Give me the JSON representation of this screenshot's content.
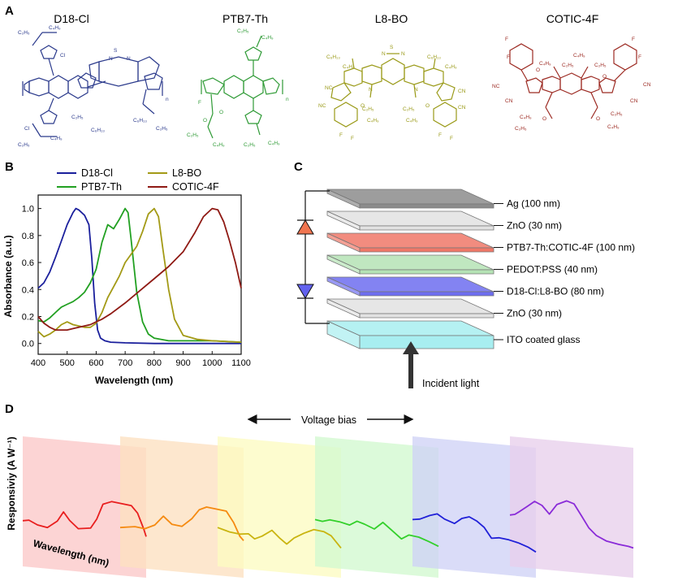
{
  "panel_labels": {
    "a": "A",
    "b": "B",
    "c": "C",
    "d": "D"
  },
  "panel_a": {
    "molecules": [
      {
        "name": "D18-Cl",
        "color": "#2b3a8c"
      },
      {
        "name": "PTB7-Th",
        "color": "#2e9a35"
      },
      {
        "name": "L8-BO",
        "color": "#9a9a18"
      },
      {
        "name": "COTIC-4F",
        "color": "#9c2a22"
      }
    ],
    "atom_labels": {
      "s": "S",
      "n": "N",
      "o": "O",
      "f": "F",
      "cl": "Cl",
      "cn": "CN",
      "nc": "NC",
      "sub_n": "n",
      "c2h5": "C₂H₅",
      "c4h9": "C₄H₉",
      "c6h13": "C₆H₁₃",
      "c8h17": "C₈H₁₇"
    }
  },
  "chart_data": {
    "type": "line",
    "xlabel": "Wavelength (nm)",
    "ylabel": "Absorbance (a.u.)",
    "xlim": [
      400,
      1100
    ],
    "ylim": [
      -0.08,
      1.1
    ],
    "xticks": [
      400,
      500,
      600,
      700,
      800,
      900,
      1000,
      1100
    ],
    "yticks": [
      0.0,
      0.2,
      0.4,
      0.6,
      0.8,
      1.0
    ],
    "xtick_labels": [
      "400",
      "500",
      "600",
      "700",
      "800",
      "900",
      "1000",
      "1100"
    ],
    "ytick_labels": [
      "0.0",
      "0.2",
      "0.4",
      "0.6",
      "0.8",
      "1.0"
    ],
    "legend_position": "top",
    "series": [
      {
        "name": "D18-Cl",
        "color": "#1a1f9c",
        "x": [
          400,
          420,
          440,
          460,
          480,
          500,
          520,
          530,
          540,
          560,
          575,
          585,
          595,
          605,
          615,
          630,
          650,
          700,
          800,
          900,
          1000,
          1100
        ],
        "y": [
          0.41,
          0.45,
          0.53,
          0.64,
          0.76,
          0.88,
          0.97,
          1.0,
          0.99,
          0.95,
          0.88,
          0.63,
          0.3,
          0.1,
          0.04,
          0.02,
          0.01,
          0.005,
          0.0,
          0.0,
          0.0,
          0.0
        ]
      },
      {
        "name": "PTB7-Th",
        "color": "#22a022",
        "x": [
          400,
          420,
          440,
          460,
          480,
          500,
          520,
          540,
          560,
          580,
          600,
          620,
          640,
          660,
          680,
          700,
          710,
          720,
          740,
          760,
          780,
          800,
          850,
          900,
          1000,
          1100
        ],
        "y": [
          0.17,
          0.16,
          0.19,
          0.23,
          0.27,
          0.29,
          0.31,
          0.34,
          0.38,
          0.45,
          0.55,
          0.75,
          0.88,
          0.85,
          0.92,
          1.0,
          0.97,
          0.78,
          0.38,
          0.16,
          0.07,
          0.04,
          0.02,
          0.02,
          0.02,
          0.01
        ]
      },
      {
        "name": "L8-BO",
        "color": "#a39a16",
        "x": [
          400,
          420,
          440,
          460,
          480,
          500,
          520,
          540,
          560,
          580,
          600,
          620,
          640,
          660,
          680,
          700,
          720,
          740,
          760,
          780,
          800,
          815,
          830,
          850,
          870,
          900,
          950,
          1000,
          1100
        ],
        "y": [
          0.09,
          0.05,
          0.07,
          0.1,
          0.14,
          0.16,
          0.14,
          0.13,
          0.12,
          0.12,
          0.15,
          0.23,
          0.34,
          0.42,
          0.5,
          0.6,
          0.66,
          0.72,
          0.83,
          0.96,
          1.0,
          0.94,
          0.7,
          0.4,
          0.18,
          0.06,
          0.03,
          0.02,
          0.01
        ]
      },
      {
        "name": "COTIC-4F",
        "color": "#8f1a14",
        "x": [
          400,
          420,
          440,
          460,
          480,
          500,
          520,
          540,
          560,
          580,
          600,
          620,
          650,
          700,
          750,
          800,
          850,
          900,
          940,
          970,
          1000,
          1020,
          1040,
          1060,
          1080,
          1100
        ],
        "y": [
          0.2,
          0.15,
          0.12,
          0.1,
          0.1,
          0.1,
          0.11,
          0.12,
          0.13,
          0.14,
          0.16,
          0.18,
          0.22,
          0.3,
          0.39,
          0.48,
          0.57,
          0.68,
          0.82,
          0.94,
          1.0,
          0.99,
          0.9,
          0.76,
          0.6,
          0.41
        ]
      }
    ]
  },
  "panel_c": {
    "layers": [
      {
        "label": "Ag (100 nm)",
        "color": "#8c8c8c"
      },
      {
        "label": "ZnO (30 nm)",
        "color": "#e2e2e2"
      },
      {
        "label": "PTB7-Th:COTIC-4F (100 nm)",
        "color": "#f07868"
      },
      {
        "label": "PEDOT:PSS (40 nm)",
        "color": "#b5e3b5"
      },
      {
        "label": "D18-Cl:L8-BO (80 nm)",
        "color": "#6d6df0"
      },
      {
        "label": "ZnO (30 nm)",
        "color": "#e2e2e2"
      },
      {
        "label": "ITO coated glass",
        "color": "#a8eef0"
      }
    ],
    "diode_top_color": "#f07550",
    "diode_bottom_color": "#6262ee",
    "incident_light_label": "Incident light"
  },
  "panel_d": {
    "voltage_bias_label": "Voltage bias",
    "ylabel": "Responsiviy (A W⁻¹)",
    "xlabel": "Wavelength (nm)",
    "sheets": [
      {
        "bg": "#fbc8c8",
        "line": "#e81e1e"
      },
      {
        "bg": "#fde0c0",
        "line": "#f58a10"
      },
      {
        "bg": "#fdfbc2",
        "line": "#c9b410"
      },
      {
        "bg": "#d2f8d0",
        "line": "#33d02b"
      },
      {
        "bg": "#d0d2f6",
        "line": "#2020d8"
      },
      {
        "bg": "#e8d0ec",
        "line": "#8a2bd8"
      }
    ]
  }
}
